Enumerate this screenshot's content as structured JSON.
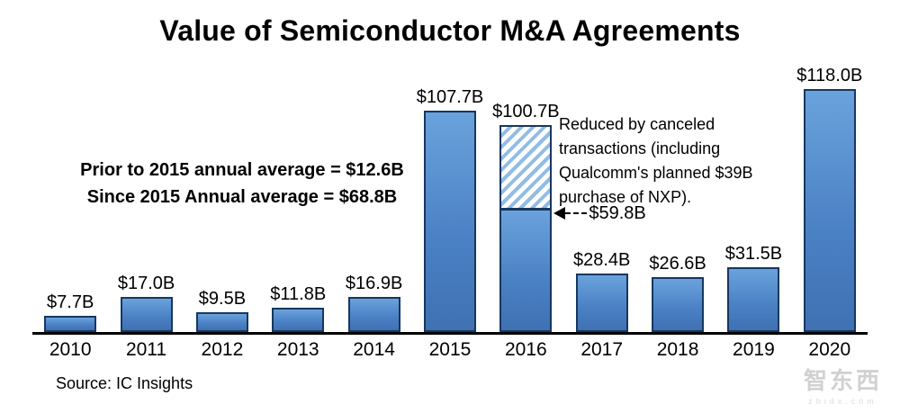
{
  "title": "Value of Semiconductor M&A Agreements",
  "annotations": {
    "average_note_line1": "Prior to 2015 annual average = $12.6B",
    "average_note_line2": "Since 2015 Annual average = $68.8B",
    "reduced_note": "Reduced by canceled transactions (including Qualcomm's planned $39B purchase of NXP).",
    "reduced_value_label": "$59.8B"
  },
  "source": "Source: IC Insights",
  "watermark": {
    "text": "智东西",
    "subtext": "zhidx.com"
  },
  "chart_data": {
    "type": "bar",
    "title": "Value of Semiconductor M&A Agreements",
    "categories": [
      "2010",
      "2011",
      "2012",
      "2013",
      "2014",
      "2015",
      "2016",
      "2017",
      "2018",
      "2019",
      "2020"
    ],
    "values": [
      7.7,
      17.0,
      9.5,
      11.8,
      16.9,
      107.7,
      100.7,
      28.4,
      26.6,
      31.5,
      118.0
    ],
    "value_labels": [
      "$7.7B",
      "$17.0B",
      "$9.5B",
      "$11.8B",
      "$16.9B",
      "$107.7B",
      "$100.7B",
      "$28.4B",
      "$26.6B",
      "$31.5B",
      "$118.0B"
    ],
    "ylim": [
      0,
      118
    ],
    "grid": false,
    "legend": false,
    "bar_color": "#4a80c4",
    "bar_border_color": "#17375e",
    "hatch_stripe_color": "#92bce4",
    "special_bar": {
      "category": "2016",
      "full_value": 100.7,
      "reduced_value": 59.8,
      "hatched_range": [
        59.8,
        100.7
      ]
    }
  }
}
